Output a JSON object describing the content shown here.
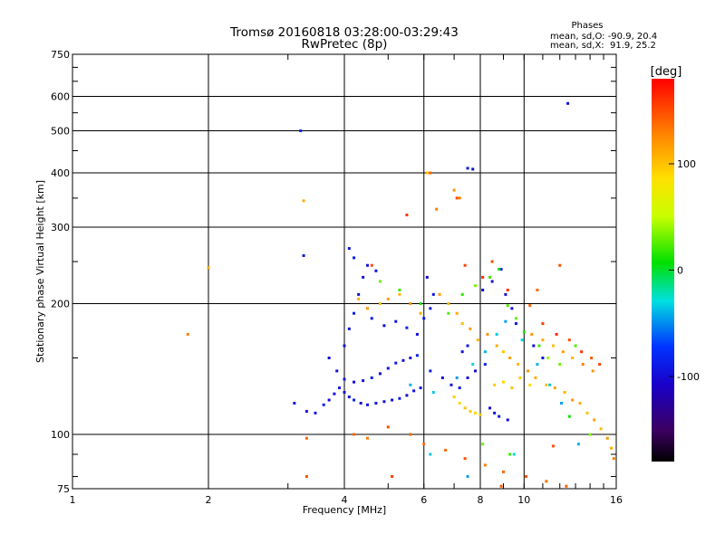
{
  "chart_data": {
    "type": "scatter",
    "title": "Tromsø 20160818 03:28:00-03:29:43",
    "subtitle": "RwPretec (8p)",
    "xlabel": "Frequency [MHz]",
    "ylabel": "Stationary phase Virtual Height [km]",
    "x_scale": "log",
    "y_scale": "log",
    "xlim": [
      1,
      16
    ],
    "ylim": [
      75,
      750
    ],
    "x_ticks": [
      1,
      2,
      4,
      6,
      8,
      10,
      16
    ],
    "x_tick_labels": [
      "1",
      "2",
      "4",
      "6",
      "8",
      "10",
      "16"
    ],
    "y_ticks": [
      75,
      100,
      200,
      300,
      400,
      500,
      600,
      750
    ],
    "y_tick_labels": [
      "75",
      "100",
      "200",
      "300",
      "400",
      "500",
      "600",
      "750"
    ],
    "grid": true,
    "phase_info": {
      "heading": "Phases",
      "line_o": "mean, sd,O: -90.9, 20.4",
      "line_x": "mean, sd,X:  91.9, 25.2"
    },
    "colorbar": {
      "label": "[deg]",
      "range": [
        -180,
        180
      ],
      "ticks": [
        100,
        0,
        -100
      ],
      "tick_labels": [
        "100",
        "0",
        "-100"
      ],
      "colormap": "rainbow"
    },
    "series": [
      {
        "description": "ionogram echoes: frequency [MHz], virtual height [km], phase [deg]",
        "points": [
          [
            1.8,
            170,
            130
          ],
          [
            2.0,
            242,
            110
          ],
          [
            3.2,
            500,
            -80
          ],
          [
            3.25,
            345,
            110
          ],
          [
            3.25,
            258,
            -90
          ],
          [
            3.1,
            118,
            -95
          ],
          [
            3.3,
            113,
            -100
          ],
          [
            3.45,
            112,
            -90
          ],
          [
            3.6,
            117,
            -85
          ],
          [
            3.7,
            120,
            -100
          ],
          [
            3.8,
            124,
            -95
          ],
          [
            3.9,
            128,
            -90
          ],
          [
            4.0,
            125,
            -100
          ],
          [
            4.1,
            122,
            -95
          ],
          [
            4.2,
            120,
            -85
          ],
          [
            4.35,
            118,
            -100
          ],
          [
            4.5,
            117,
            -95
          ],
          [
            4.7,
            118,
            -90
          ],
          [
            4.9,
            119,
            -100
          ],
          [
            5.1,
            120,
            -95
          ],
          [
            5.3,
            121,
            -85
          ],
          [
            5.5,
            123,
            -100
          ],
          [
            5.7,
            126,
            -95
          ],
          [
            5.9,
            128,
            -90
          ],
          [
            3.7,
            150,
            -100
          ],
          [
            3.85,
            140,
            -95
          ],
          [
            4.0,
            134,
            -90
          ],
          [
            4.2,
            132,
            -100
          ],
          [
            4.4,
            133,
            -95
          ],
          [
            4.6,
            135,
            -85
          ],
          [
            4.8,
            138,
            -100
          ],
          [
            5.0,
            142,
            -95
          ],
          [
            5.2,
            146,
            -90
          ],
          [
            5.4,
            148,
            -100
          ],
          [
            5.6,
            150,
            -95
          ],
          [
            5.8,
            152,
            -85
          ],
          [
            4.0,
            160,
            -100
          ],
          [
            4.1,
            175,
            -95
          ],
          [
            4.2,
            190,
            -90
          ],
          [
            4.3,
            210,
            -100
          ],
          [
            4.4,
            230,
            -95
          ],
          [
            4.1,
            268,
            -90
          ],
          [
            4.2,
            255,
            -85
          ],
          [
            4.5,
            245,
            -100
          ],
          [
            4.7,
            238,
            -95
          ],
          [
            4.6,
            185,
            -90
          ],
          [
            4.9,
            178,
            -100
          ],
          [
            5.2,
            182,
            -95
          ],
          [
            5.5,
            176,
            -85
          ],
          [
            5.8,
            170,
            -100
          ],
          [
            6.0,
            185,
            -95
          ],
          [
            6.2,
            195,
            -90
          ],
          [
            6.1,
            230,
            -100
          ],
          [
            6.3,
            210,
            -95
          ],
          [
            6.2,
            140,
            -85
          ],
          [
            6.6,
            135,
            -100
          ],
          [
            6.9,
            130,
            -95
          ],
          [
            7.2,
            128,
            -90
          ],
          [
            7.5,
            135,
            -100
          ],
          [
            7.8,
            140,
            -95
          ],
          [
            8.2,
            145,
            -85
          ],
          [
            8.4,
            115,
            -100
          ],
          [
            8.6,
            112,
            -95
          ],
          [
            8.8,
            110,
            -90
          ],
          [
            9.2,
            108,
            -100
          ],
          [
            7.3,
            155,
            -95
          ],
          [
            7.5,
            160,
            -90
          ],
          [
            8.1,
            215,
            -100
          ],
          [
            8.5,
            225,
            -95
          ],
          [
            8.9,
            240,
            -85
          ],
          [
            9.1,
            210,
            -100
          ],
          [
            9.4,
            195,
            -95
          ],
          [
            9.6,
            180,
            -90
          ],
          [
            10.5,
            160,
            -100
          ],
          [
            11.0,
            150,
            -95
          ],
          [
            7.5,
            410,
            -90
          ],
          [
            7.7,
            408,
            -100
          ],
          [
            12.5,
            578,
            -95
          ],
          [
            4.3,
            205,
            110
          ],
          [
            4.5,
            195,
            120
          ],
          [
            4.8,
            200,
            100
          ],
          [
            5.0,
            205,
            115
          ],
          [
            5.3,
            210,
            105
          ],
          [
            5.6,
            200,
            120
          ],
          [
            5.9,
            190,
            110
          ],
          [
            6.1,
            400,
            100
          ],
          [
            6.4,
            330,
            130
          ],
          [
            6.5,
            210,
            115
          ],
          [
            6.8,
            200,
            105
          ],
          [
            7.0,
            365,
            120
          ],
          [
            7.2,
            350,
            130
          ],
          [
            7.1,
            190,
            110
          ],
          [
            7.3,
            180,
            100
          ],
          [
            7.6,
            175,
            115
          ],
          [
            7.9,
            165,
            105
          ],
          [
            8.3,
            170,
            120
          ],
          [
            8.7,
            160,
            110
          ],
          [
            9.0,
            155,
            100
          ],
          [
            9.3,
            150,
            115
          ],
          [
            9.7,
            145,
            105
          ],
          [
            10.2,
            140,
            120
          ],
          [
            10.6,
            135,
            110
          ],
          [
            11.2,
            130,
            100
          ],
          [
            11.7,
            128,
            115
          ],
          [
            12.3,
            125,
            105
          ],
          [
            12.8,
            120,
            120
          ],
          [
            13.3,
            118,
            110
          ],
          [
            13.8,
            112,
            100
          ],
          [
            14.3,
            108,
            115
          ],
          [
            14.8,
            103,
            105
          ],
          [
            15.3,
            98,
            120
          ],
          [
            15.6,
            93,
            110
          ],
          [
            15.8,
            88,
            130
          ],
          [
            10.4,
            170,
            120
          ],
          [
            11.0,
            165,
            110
          ],
          [
            11.6,
            160,
            100
          ],
          [
            12.2,
            155,
            115
          ],
          [
            12.8,
            150,
            105
          ],
          [
            13.5,
            145,
            130
          ],
          [
            14.2,
            140,
            120
          ],
          [
            7.0,
            122,
            95
          ],
          [
            7.2,
            118,
            90
          ],
          [
            7.4,
            115,
            100
          ],
          [
            7.6,
            113,
            95
          ],
          [
            7.8,
            112,
            90
          ],
          [
            8.0,
            111,
            100
          ],
          [
            8.6,
            130,
            95
          ],
          [
            9.0,
            132,
            90
          ],
          [
            9.4,
            128,
            100
          ],
          [
            9.8,
            135,
            95
          ],
          [
            10.3,
            130,
            90
          ],
          [
            4.2,
            100,
            140
          ],
          [
            4.5,
            98,
            130
          ],
          [
            5.0,
            104,
            150
          ],
          [
            5.6,
            100,
            140
          ],
          [
            6.0,
            95,
            135
          ],
          [
            6.7,
            92,
            140
          ],
          [
            7.4,
            88,
            150
          ],
          [
            8.2,
            85,
            130
          ],
          [
            9.0,
            82,
            140
          ],
          [
            10.1,
            80,
            150
          ],
          [
            11.2,
            78,
            135
          ],
          [
            12.4,
            76,
            140
          ],
          [
            4.8,
            225,
            30
          ],
          [
            5.3,
            215,
            20
          ],
          [
            5.9,
            200,
            10
          ],
          [
            6.8,
            190,
            25
          ],
          [
            7.3,
            210,
            15
          ],
          [
            7.8,
            220,
            35
          ],
          [
            8.4,
            230,
            20
          ],
          [
            8.8,
            240,
            10
          ],
          [
            9.2,
            198,
            25
          ],
          [
            9.6,
            185,
            30
          ],
          [
            10.0,
            172,
            15
          ],
          [
            10.8,
            160,
            20
          ],
          [
            11.3,
            150,
            40
          ],
          [
            12.0,
            145,
            30
          ],
          [
            13.0,
            160,
            25
          ],
          [
            8.1,
            95,
            30
          ],
          [
            9.3,
            90,
            20
          ],
          [
            12.6,
            110,
            10
          ],
          [
            14.0,
            100,
            35
          ],
          [
            5.6,
            130,
            -40
          ],
          [
            6.3,
            125,
            -35
          ],
          [
            7.1,
            135,
            -45
          ],
          [
            7.7,
            145,
            -30
          ],
          [
            8.2,
            155,
            -40
          ],
          [
            8.7,
            170,
            -35
          ],
          [
            9.1,
            182,
            -45
          ],
          [
            9.9,
            165,
            -30
          ],
          [
            10.7,
            145,
            -40
          ],
          [
            11.4,
            130,
            -35
          ],
          [
            12.1,
            118,
            -45
          ],
          [
            6.2,
            90,
            -35
          ],
          [
            7.5,
            80,
            -45
          ],
          [
            9.5,
            90,
            -30
          ],
          [
            13.2,
            95,
            -40
          ],
          [
            4.6,
            245,
            150
          ],
          [
            5.5,
            320,
            160
          ],
          [
            6.2,
            400,
            140
          ],
          [
            7.1,
            350,
            150
          ],
          [
            7.4,
            245,
            155
          ],
          [
            8.1,
            230,
            165
          ],
          [
            8.5,
            250,
            150
          ],
          [
            9.2,
            215,
            160
          ],
          [
            10.3,
            198,
            140
          ],
          [
            11.0,
            180,
            155
          ],
          [
            11.8,
            170,
            165
          ],
          [
            12.6,
            165,
            150
          ],
          [
            13.4,
            155,
            160
          ],
          [
            14.1,
            150,
            145
          ],
          [
            14.7,
            145,
            155
          ],
          [
            12.0,
            245,
            150
          ],
          [
            10.7,
            215,
            140
          ],
          [
            3.3,
            80,
            150
          ],
          [
            3.3,
            98,
            140
          ],
          [
            5.1,
            80,
            155
          ],
          [
            8.9,
            76,
            145
          ],
          [
            11.6,
            94,
            150
          ]
        ]
      }
    ]
  }
}
